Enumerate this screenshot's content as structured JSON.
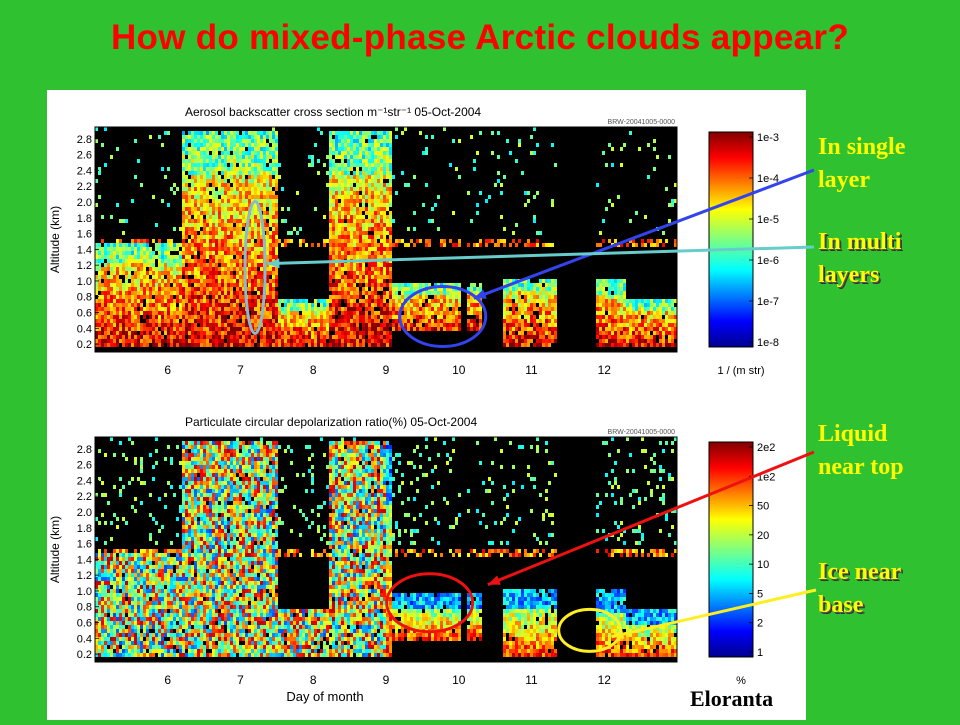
{
  "slide": {
    "title": "How do mixed-phase Arctic clouds appear?",
    "background_color": "#2fc12f",
    "title_color": "#ff0000",
    "credit": "Eloranta"
  },
  "annotations": [
    {
      "id": "single",
      "lines": [
        "In single",
        "layer"
      ],
      "color": "#ffff00",
      "shadow": false,
      "arrow_color": "#3344ee",
      "marker": "ellipse",
      "marker_color": "#3344ee"
    },
    {
      "id": "multi",
      "lines": [
        "In multi",
        "layers"
      ],
      "color": "#ffff00",
      "shadow": true,
      "arrow_color": "#66cccc",
      "marker": "ellipse",
      "marker_color": "#88bbcc"
    },
    {
      "id": "liquid",
      "lines": [
        "Liquid",
        "near top"
      ],
      "color": "#ffff00",
      "shadow": false,
      "arrow_color": "#ee1111",
      "marker": "ellipse",
      "marker_color": "#ee1111"
    },
    {
      "id": "ice",
      "lines": [
        "Ice near",
        "base"
      ],
      "color": "#ffff00",
      "shadow": true,
      "arrow_color": "#ffee22",
      "marker": "ellipse",
      "marker_color": "#ffee22"
    }
  ],
  "chart_data": [
    {
      "type": "heatmap",
      "title": "Aerosol backscatter cross section m⁻¹str⁻¹   05-Oct-2004",
      "file_label": "BRW-20041005-0000",
      "xlabel": "",
      "ylabel": "Altitude (km)",
      "x_ticks": [
        "6",
        "7",
        "8",
        "9",
        "10",
        "11",
        "12"
      ],
      "x_tick_values": [
        6,
        7,
        8,
        9,
        10,
        11,
        12
      ],
      "xlim": [
        5.0,
        13.0
      ],
      "y_ticks": [
        "0.2",
        "0.4",
        "0.6",
        "0.8",
        "1.0",
        "1.2",
        "1.4",
        "1.6",
        "1.8",
        "2.0",
        "2.2",
        "2.4",
        "2.6",
        "2.8"
      ],
      "ylim": [
        0.1,
        2.95
      ],
      "colorbar_ticks": [
        "1e-3",
        "1e-4",
        "1e-5",
        "1e-6",
        "1e-7",
        "1e-8"
      ],
      "colorbar_unit": "1 / (m str)",
      "colormap": "jet",
      "field": "backscatter",
      "clouds": [
        {
          "x": [
            5.0,
            6.2
          ],
          "top": 1.5,
          "base": 0.15
        },
        {
          "x": [
            6.2,
            7.5
          ],
          "top": 2.9,
          "base": 0.15
        },
        {
          "x": [
            7.5,
            8.2
          ],
          "top": 0.75,
          "base": 0.15
        },
        {
          "x": [
            8.2,
            9.1
          ],
          "top": 2.9,
          "base": 0.15
        },
        {
          "x": [
            9.1,
            10.3
          ],
          "top": 0.95,
          "base": 0.35
        },
        {
          "x": [
            10.6,
            11.35
          ],
          "top": 1.05,
          "base": 0.15
        },
        {
          "x": [
            11.9,
            12.3
          ],
          "top": 1.0,
          "base": 0.15
        },
        {
          "x": [
            12.3,
            13.0
          ],
          "top": 0.75,
          "base": 0.15
        }
      ],
      "missing": [
        [
          10.05,
          10.12
        ],
        [
          11.35,
          11.9
        ]
      ]
    },
    {
      "type": "heatmap",
      "title": "Particulate circular depolarization ratio(%)   05-Oct-2004",
      "file_label": "BRW-20041005-0000",
      "xlabel": "Day of month",
      "ylabel": "Altitude (km)",
      "x_ticks": [
        "6",
        "7",
        "8",
        "9",
        "10",
        "11",
        "12"
      ],
      "x_tick_values": [
        6,
        7,
        8,
        9,
        10,
        11,
        12
      ],
      "xlim": [
        5.0,
        13.0
      ],
      "y_ticks": [
        "0.2",
        "0.4",
        "0.6",
        "0.8",
        "1.0",
        "1.2",
        "1.4",
        "1.6",
        "1.8",
        "2.0",
        "2.2",
        "2.4",
        "2.6",
        "2.8"
      ],
      "ylim": [
        0.1,
        2.95
      ],
      "colorbar_ticks": [
        "2e2",
        "1e2",
        "50",
        "20",
        "10",
        "5",
        "2",
        "1"
      ],
      "colorbar_unit": "%",
      "colormap": "jet",
      "field": "depolarization",
      "clouds": [
        {
          "x": [
            5.0,
            6.2
          ],
          "top": 1.5,
          "base": 0.15
        },
        {
          "x": [
            6.2,
            7.5
          ],
          "top": 2.9,
          "base": 0.15
        },
        {
          "x": [
            7.5,
            8.2
          ],
          "top": 0.75,
          "base": 0.15
        },
        {
          "x": [
            8.2,
            9.1
          ],
          "top": 2.9,
          "base": 0.15
        },
        {
          "x": [
            9.1,
            10.3
          ],
          "top": 0.95,
          "base": 0.35
        },
        {
          "x": [
            10.6,
            11.35
          ],
          "top": 1.05,
          "base": 0.15
        },
        {
          "x": [
            11.9,
            12.3
          ],
          "top": 1.0,
          "base": 0.15
        },
        {
          "x": [
            12.3,
            13.0
          ],
          "top": 0.75,
          "base": 0.15
        }
      ],
      "missing": [
        [
          10.05,
          10.12
        ],
        [
          11.35,
          11.9
        ]
      ]
    }
  ]
}
